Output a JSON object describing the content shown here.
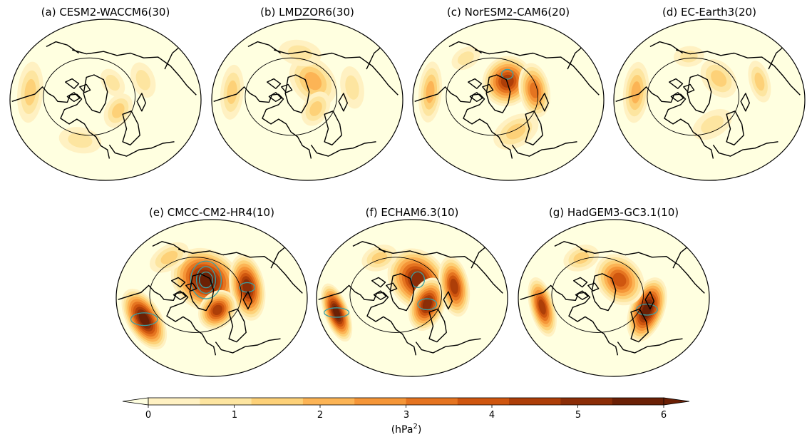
{
  "figure": {
    "projection": "north-polar-stereographic",
    "polar_circle": true,
    "contour_overlay_color": "#3aa0a3",
    "panels": [
      {
        "id": "a",
        "title": "(a) CESM2-WACCM6(30)",
        "blobs": [
          {
            "lon": 175,
            "r": 0.62,
            "lvl": 2.2,
            "sx": 0.2,
            "sy": 0.1
          },
          {
            "lon": 330,
            "r": 0.35,
            "lvl": 2.0,
            "sx": 0.12,
            "sy": 0.1
          },
          {
            "lon": 35,
            "r": 0.3,
            "lvl": 1.7,
            "sx": 0.1,
            "sy": 0.08
          },
          {
            "lon": 260,
            "r": 0.55,
            "lvl": 1.4,
            "sx": 0.14,
            "sy": 0.1
          },
          {
            "lon": 20,
            "r": 0.6,
            "lvl": 1.3,
            "sx": 0.12,
            "sy": 0.09
          }
        ],
        "contours": []
      },
      {
        "id": "b",
        "title": "(b) LMDZOR6(30)",
        "blobs": [
          {
            "lon": 40,
            "r": 0.3,
            "lvl": 2.8,
            "sx": 0.18,
            "sy": 0.16
          },
          {
            "lon": 175,
            "r": 0.62,
            "lvl": 1.9,
            "sx": 0.18,
            "sy": 0.09
          },
          {
            "lon": 330,
            "r": 0.3,
            "lvl": 1.8,
            "sx": 0.12,
            "sy": 0.1
          },
          {
            "lon": 80,
            "r": 0.55,
            "lvl": 1.6,
            "sx": 0.14,
            "sy": 0.1
          },
          {
            "lon": 10,
            "r": 0.65,
            "lvl": 1.3,
            "sx": 0.14,
            "sy": 0.09
          }
        ],
        "contours": []
      },
      {
        "id": "c",
        "title": "(c) NorESM2-CAM6(20)",
        "blobs": [
          {
            "lon": 50,
            "r": 0.25,
            "lvl": 4.8,
            "sx": 0.16,
            "sy": 0.2
          },
          {
            "lon": 10,
            "r": 0.45,
            "lvl": 4.0,
            "sx": 0.18,
            "sy": 0.12
          },
          {
            "lon": 175,
            "r": 0.65,
            "lvl": 2.6,
            "sx": 0.2,
            "sy": 0.09
          },
          {
            "lon": 300,
            "r": 0.5,
            "lvl": 2.0,
            "sx": 0.16,
            "sy": 0.12
          },
          {
            "lon": 120,
            "r": 0.55,
            "lvl": 1.5,
            "sx": 0.1,
            "sy": 0.08
          }
        ],
        "contours": [
          {
            "lon": 60,
            "r": 0.32,
            "rx": 0.06,
            "ry": 0.06
          }
        ]
      },
      {
        "id": "d",
        "title": "(d) EC-Earth3(20)",
        "blobs": [
          {
            "lon": 175,
            "r": 0.6,
            "lvl": 2.4,
            "sx": 0.2,
            "sy": 0.1
          },
          {
            "lon": 15,
            "r": 0.72,
            "lvl": 2.0,
            "sx": 0.14,
            "sy": 0.08
          },
          {
            "lon": 40,
            "r": 0.35,
            "lvl": 1.8,
            "sx": 0.14,
            "sy": 0.12
          },
          {
            "lon": 300,
            "r": 0.4,
            "lvl": 1.7,
            "sx": 0.14,
            "sy": 0.1
          },
          {
            "lon": 95,
            "r": 0.5,
            "lvl": 1.4,
            "sx": 0.1,
            "sy": 0.08
          }
        ],
        "contours": []
      },
      {
        "id": "e",
        "title": "(e) CMCC-CM2-HR4(10)",
        "blobs": [
          {
            "lon": 60,
            "r": 0.22,
            "lvl": 7.0,
            "sx": 0.24,
            "sy": 0.24
          },
          {
            "lon": 10,
            "r": 0.55,
            "lvl": 5.5,
            "sx": 0.22,
            "sy": 0.14
          },
          {
            "lon": 210,
            "r": 0.62,
            "lvl": 6.5,
            "sx": 0.22,
            "sy": 0.14
          },
          {
            "lon": 320,
            "r": 0.3,
            "lvl": 5.0,
            "sx": 0.14,
            "sy": 0.14
          },
          {
            "lon": 120,
            "r": 0.55,
            "lvl": 2.0,
            "sx": 0.14,
            "sy": 0.1
          }
        ],
        "contours": [
          {
            "lon": 60,
            "r": 0.22,
            "rx": 0.1,
            "ry": 0.17
          },
          {
            "lon": 60,
            "r": 0.22,
            "rx": 0.16,
            "ry": 0.24
          },
          {
            "lon": 60,
            "r": 0.22,
            "rx": 0.07,
            "ry": 0.1
          },
          {
            "lon": 210,
            "r": 0.62,
            "rx": 0.14,
            "ry": 0.08
          },
          {
            "lon": 10,
            "r": 0.55,
            "rx": 0.08,
            "ry": 0.06
          }
        ]
      },
      {
        "id": "f",
        "title": "(f) ECHAM6.3(10)",
        "blobs": [
          {
            "lon": 40,
            "r": 0.3,
            "lvl": 5.5,
            "sx": 0.22,
            "sy": 0.22
          },
          {
            "lon": 340,
            "r": 0.35,
            "lvl": 5.5,
            "sx": 0.18,
            "sy": 0.14
          },
          {
            "lon": 200,
            "r": 0.66,
            "lvl": 6.5,
            "sx": 0.2,
            "sy": 0.1
          },
          {
            "lon": 10,
            "r": 0.62,
            "lvl": 4.8,
            "sx": 0.2,
            "sy": 0.12
          },
          {
            "lon": 110,
            "r": 0.5,
            "lvl": 2.0,
            "sx": 0.12,
            "sy": 0.1
          }
        ],
        "contours": [
          {
            "lon": 200,
            "r": 0.66,
            "rx": 0.13,
            "ry": 0.06
          },
          {
            "lon": 40,
            "r": 0.3,
            "rx": 0.07,
            "ry": 0.1
          },
          {
            "lon": 340,
            "r": 0.35,
            "rx": 0.1,
            "ry": 0.07
          }
        ]
      },
      {
        "id": "g",
        "title": "(g) HadGEM3-GC3.1(10)",
        "blobs": [
          {
            "lon": 340,
            "r": 0.55,
            "lvl": 6.0,
            "sx": 0.22,
            "sy": 0.14
          },
          {
            "lon": 40,
            "r": 0.3,
            "lvl": 4.2,
            "sx": 0.18,
            "sy": 0.18
          },
          {
            "lon": 195,
            "r": 0.6,
            "lvl": 5.0,
            "sx": 0.2,
            "sy": 0.1
          },
          {
            "lon": 110,
            "r": 0.5,
            "lvl": 1.8,
            "sx": 0.12,
            "sy": 0.1
          }
        ],
        "contours": [
          {
            "lon": 340,
            "r": 0.55,
            "rx": 0.11,
            "ry": 0.07
          }
        ]
      }
    ]
  },
  "colorbar": {
    "levels": [
      0,
      0.6,
      1.2,
      1.8,
      2.4,
      3.0,
      3.6,
      4.2,
      4.8,
      5.4,
      6.0
    ],
    "colors": [
      "#ffffe0",
      "#fff1c2",
      "#fde5a0",
      "#fdd178",
      "#fcb455",
      "#f59638",
      "#e57420",
      "#cf560f",
      "#ad3e08",
      "#8b2d07",
      "#6b2005"
    ],
    "tick_values": [
      0,
      1,
      2,
      3,
      4,
      5,
      6
    ],
    "tick_labels": [
      "0",
      "1",
      "2",
      "3",
      "4",
      "5",
      "6"
    ],
    "unit_label": "(hPa",
    "unit_sup": "2",
    "unit_close": ")",
    "extend": "both"
  }
}
